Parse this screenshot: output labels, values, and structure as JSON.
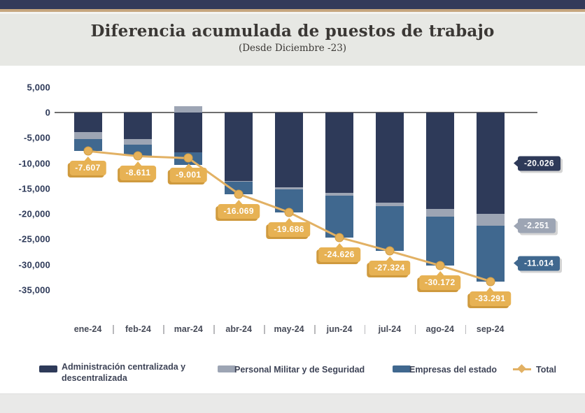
{
  "header": {
    "title": "Diferencia acumulada de puestos de trabajo",
    "subtitle": "(Desde Diciembre -23)"
  },
  "chart_data": {
    "type": "bar",
    "subtype": "stacked-bar-with-total-line",
    "title": "Diferencia acumulada de puestos de trabajo",
    "subtitle": "(Desde Diciembre -23)",
    "categories": [
      "ene-24",
      "feb-24",
      "mar-24",
      "abr-24",
      "may-24",
      "jun-24",
      "jul-24",
      "ago-24",
      "sep-24"
    ],
    "series": [
      {
        "name": "Administración centralizada y descentralizada",
        "color": "#2e3a59",
        "values": [
          -3800,
          -5300,
          -7900,
          -13469,
          -14700,
          -15900,
          -17800,
          -19000,
          -20026
        ]
      },
      {
        "name": "Personal Militar y de Seguridad",
        "color": "#9da5b4",
        "values": [
          -1400,
          -1000,
          1300,
          -200,
          -500,
          -500,
          -600,
          -1600,
          -2251
        ]
      },
      {
        "name": "Empresas del estado",
        "color": "#40688f",
        "values": [
          -2407,
          -2311,
          -2401,
          -2400,
          -4486,
          -8226,
          -8924,
          -9572,
          -11014
        ]
      }
    ],
    "total_line": {
      "name": "Total",
      "color": "#e2b164",
      "values": [
        -7607,
        -8611,
        -9001,
        -16069,
        -19686,
        -24626,
        -27324,
        -30172,
        -33291
      ],
      "labels": [
        "-7.607",
        "-8.611",
        "-9.001",
        "-16.069",
        "-19.686",
        "-24.626",
        "-27.324",
        "-30.172",
        "-33.291"
      ]
    },
    "end_labels": [
      {
        "text": "-20.026",
        "color": "#2e3a59"
      },
      {
        "text": "-2.251",
        "color": "#9da5b4"
      },
      {
        "text": "-11.014",
        "color": "#40688f"
      }
    ],
    "y_axis": {
      "tick_labels": [
        "5,000",
        "0",
        "-5,000",
        "-10,000",
        "-15,000",
        "-20,000",
        "-25,000",
        "-30,000",
        "-35,000"
      ],
      "tick_values": [
        5000,
        0,
        -5000,
        -10000,
        -15000,
        -20000,
        -25000,
        -30000,
        -35000
      ],
      "ylim": [
        -35000,
        5000
      ]
    },
    "grid": false,
    "legend_position": "bottom"
  },
  "legend": {
    "items": [
      {
        "label": "Administración centralizada y descentralizada",
        "marker": "square",
        "color": "#2e3a59"
      },
      {
        "label": "Personal Militar y de Seguridad",
        "marker": "square",
        "color": "#9da5b4"
      },
      {
        "label": "Empresas del estado",
        "marker": "square",
        "color": "#40688f"
      },
      {
        "label": "Total",
        "marker": "diamond-line",
        "color": "#e2b164"
      }
    ]
  }
}
